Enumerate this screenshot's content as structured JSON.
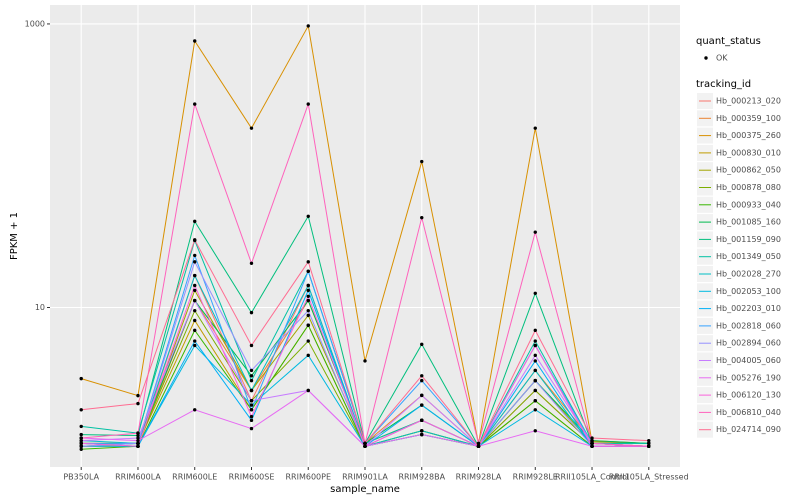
{
  "chart_data": {
    "type": "line",
    "x_label": "sample_name",
    "y_label": "FPKM + 1",
    "log_y": true,
    "grid": true,
    "ylim": [
      0.75,
      1360
    ],
    "yticks": [
      10,
      1000
    ],
    "categories": [
      "PB350LA",
      "RRIM600LA",
      "RRIM600LE",
      "RRIM600SE",
      "RRIM600PE",
      "RRIM901LA",
      "RRIM928BA",
      "RRIM928LA",
      "RRIM928LE",
      "RRII105LA_Control",
      "RRII105LA_Stressed"
    ],
    "shape_legend": {
      "title": "quant_status",
      "labels": [
        "OK"
      ]
    },
    "legend_title": "tracking_id",
    "legend_position": "right",
    "point_color": "#000000",
    "series": [
      {
        "name": "Hb_000213_020",
        "color": "#F8766D",
        "values": [
          1.1,
          1.05,
          16.8,
          2.2,
          14.3,
          1.05,
          1.6,
          1.05,
          2.6,
          1.1,
          1.05
        ]
      },
      {
        "name": "Hb_000359_100",
        "color": "#EA8331",
        "values": [
          1.05,
          1.05,
          11.2,
          2.6,
          11.2,
          1.1,
          2.4,
          1.05,
          3.6,
          1.15,
          1.1
        ]
      },
      {
        "name": "Hb_000375_260",
        "color": "#D89000",
        "values": [
          3.15,
          2.39,
          758,
          184,
          968,
          4.2,
          107,
          1.1,
          184,
          1.13,
          1.1
        ]
      },
      {
        "name": "Hb_000830_010",
        "color": "#C09B00",
        "values": [
          1.1,
          1.1,
          8.1,
          1.9,
          7.5,
          1.05,
          1.35,
          1.05,
          2.2,
          1.05,
          1.05
        ]
      },
      {
        "name": "Hb_000862_050",
        "color": "#A3A500",
        "values": [
          1.05,
          1.05,
          13.2,
          2.6,
          8.8,
          1.1,
          1.6,
          1.05,
          3.05,
          1.1,
          1.05
        ]
      },
      {
        "name": "Hb_000878_080",
        "color": "#7CAE00",
        "values": [
          1.1,
          1.1,
          9.5,
          2.2,
          5.8,
          1.05,
          1.35,
          1.05,
          2.6,
          1.1,
          1.05
        ]
      },
      {
        "name": "Hb_000933_040",
        "color": "#39B600",
        "values": [
          1.0,
          1.05,
          6.9,
          1.9,
          7.5,
          1.05,
          1.27,
          1.05,
          2.2,
          1.05,
          1.05
        ]
      },
      {
        "name": "Hb_001085_160",
        "color": "#00BB4E",
        "values": [
          1.05,
          1.1,
          11.2,
          3.3,
          11.2,
          1.1,
          2.05,
          1.05,
          3.05,
          1.15,
          1.1
        ]
      },
      {
        "name": "Hb_001159_090",
        "color": "#00BF7D",
        "values": [
          1.27,
          1.25,
          40.5,
          9.2,
          44,
          1.1,
          5.5,
          1.05,
          12.6,
          1.1,
          1.1
        ]
      },
      {
        "name": "Hb_001349_050",
        "color": "#00C1A3",
        "values": [
          1.45,
          1.3,
          29.7,
          3.05,
          18,
          1.1,
          1.6,
          1.05,
          5.8,
          1.1,
          1.1
        ]
      },
      {
        "name": "Hb_002028_270",
        "color": "#00BFC4",
        "values": [
          1.15,
          1.1,
          16.8,
          2.6,
          14.3,
          1.05,
          1.35,
          1.05,
          3.6,
          1.05,
          1.05
        ]
      },
      {
        "name": "Hb_002053_100",
        "color": "#00BAE0",
        "values": [
          1.1,
          1.05,
          5.4,
          2.05,
          4.6,
          1.05,
          1.27,
          1.05,
          1.9,
          1.05,
          1.05
        ]
      },
      {
        "name": "Hb_002203_010",
        "color": "#00B0F6",
        "values": [
          1.05,
          1.05,
          5.8,
          1.6,
          13.2,
          1.05,
          2.05,
          1.05,
          4.2,
          1.05,
          1.05
        ]
      },
      {
        "name": "Hb_002818_060",
        "color": "#35A2FF",
        "values": [
          1.1,
          1.1,
          23.3,
          1.9,
          18,
          1.1,
          3.05,
          1.05,
          5.4,
          1.1,
          1.05
        ]
      },
      {
        "name": "Hb_002894_060",
        "color": "#9590FF",
        "values": [
          1.05,
          1.1,
          21,
          3.6,
          9.5,
          1.05,
          1.6,
          1.05,
          3.05,
          1.05,
          1.05
        ]
      },
      {
        "name": "Hb_004005_060",
        "color": "#C77CFF",
        "values": [
          1.15,
          1.2,
          11.2,
          2.2,
          2.6,
          1.05,
          2.4,
          1.05,
          4.6,
          1.1,
          1.05
        ]
      },
      {
        "name": "Hb_005276_190",
        "color": "#E76BF3",
        "values": [
          1.2,
          1.15,
          1.9,
          1.4,
          2.6,
          1.05,
          1.27,
          1.05,
          1.35,
          1.05,
          1.05
        ]
      },
      {
        "name": "Hb_006120_130",
        "color": "#FA62DB",
        "values": [
          1.1,
          1.05,
          14.3,
          1.7,
          12,
          1.05,
          1.6,
          1.05,
          5.4,
          1.05,
          1.05
        ]
      },
      {
        "name": "Hb_006810_040",
        "color": "#FF62BC",
        "values": [
          1.2,
          1.3,
          272,
          20.5,
          272,
          1.1,
          43,
          1.1,
          34,
          1.1,
          1.05
        ]
      },
      {
        "name": "Hb_024714_090",
        "color": "#FF6C91",
        "values": [
          1.9,
          2.1,
          30,
          5.4,
          21,
          1.1,
          3.3,
          1.05,
          6.9,
          1.2,
          1.15
        ]
      }
    ]
  }
}
